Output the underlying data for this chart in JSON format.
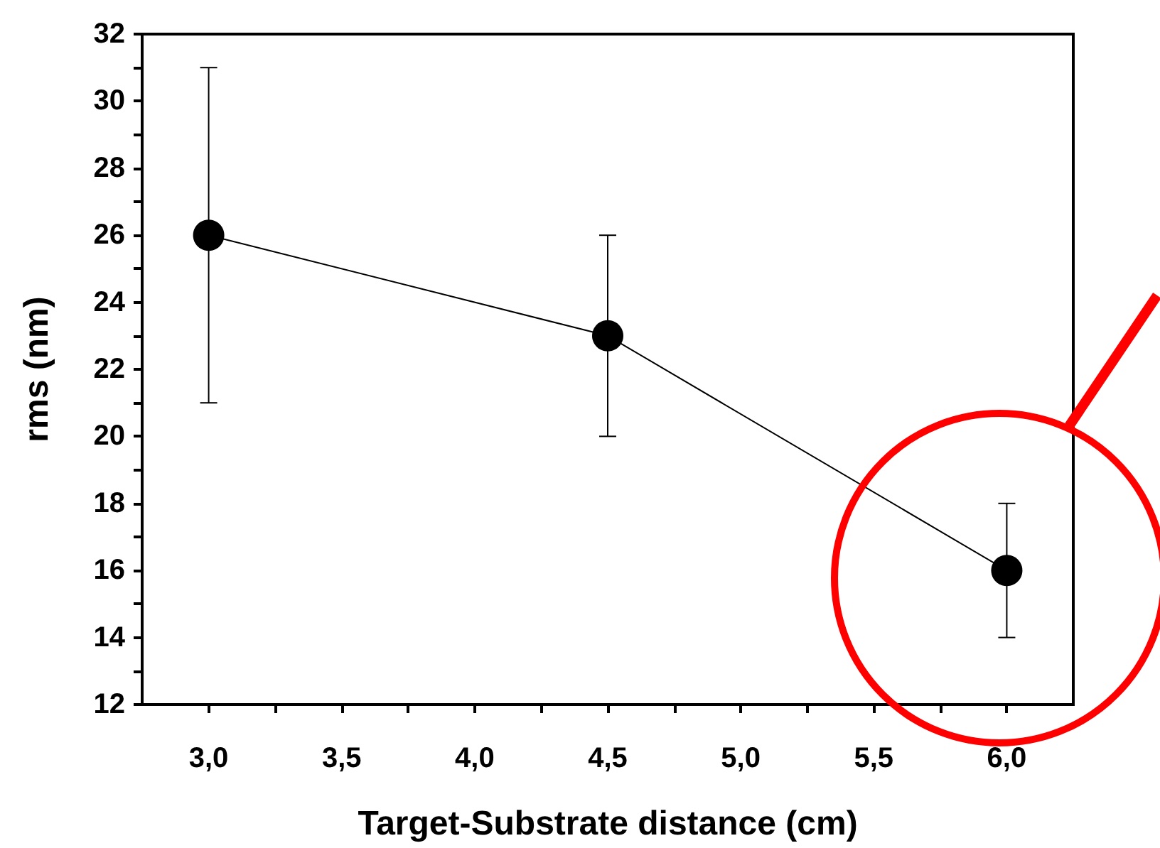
{
  "chart_data": {
    "type": "line",
    "xlabel": "Target-Substrate distance (cm)",
    "ylabel": "rms (nm)",
    "x": [
      3.0,
      4.5,
      6.0
    ],
    "series": [
      {
        "color": "#000000",
        "values": [
          26,
          23,
          16
        ],
        "errors": [
          5,
          3,
          2
        ]
      }
    ],
    "marker": "circle",
    "line_style": "solid",
    "grid": false,
    "xlim": [
      2.75,
      6.25
    ],
    "xticks": [
      {
        "value": 3,
        "label": "3,0"
      },
      {
        "value": 3.25,
        "label": null
      },
      {
        "value": 3.5,
        "label": "3,5"
      },
      {
        "value": 3.75,
        "label": null
      },
      {
        "value": 4,
        "label": "4,0"
      },
      {
        "value": 4.25,
        "label": null
      },
      {
        "value": 4.5,
        "label": "4,5"
      },
      {
        "value": 4.75,
        "label": null
      },
      {
        "value": 5,
        "label": "5,0"
      },
      {
        "value": 5.25,
        "label": null
      },
      {
        "value": 5.5,
        "label": "5,5"
      },
      {
        "value": 5.75,
        "label": null
      },
      {
        "value": 6,
        "label": "6,0"
      }
    ],
    "ylim": [
      12,
      32
    ],
    "yticks": [
      12,
      {
        "value": 13,
        "label": null
      },
      14,
      {
        "value": 15,
        "label": null
      },
      16,
      {
        "value": 17,
        "label": null
      },
      18,
      {
        "value": 19,
        "label": null
      },
      20,
      {
        "value": 21,
        "label": null
      },
      22,
      {
        "value": 23,
        "label": null
      },
      24,
      {
        "value": 25,
        "label": null
      },
      26,
      {
        "value": 27,
        "label": null
      },
      28,
      {
        "value": 29,
        "label": null
      },
      30,
      {
        "value": 31,
        "label": null
      },
      32
    ]
  }
}
